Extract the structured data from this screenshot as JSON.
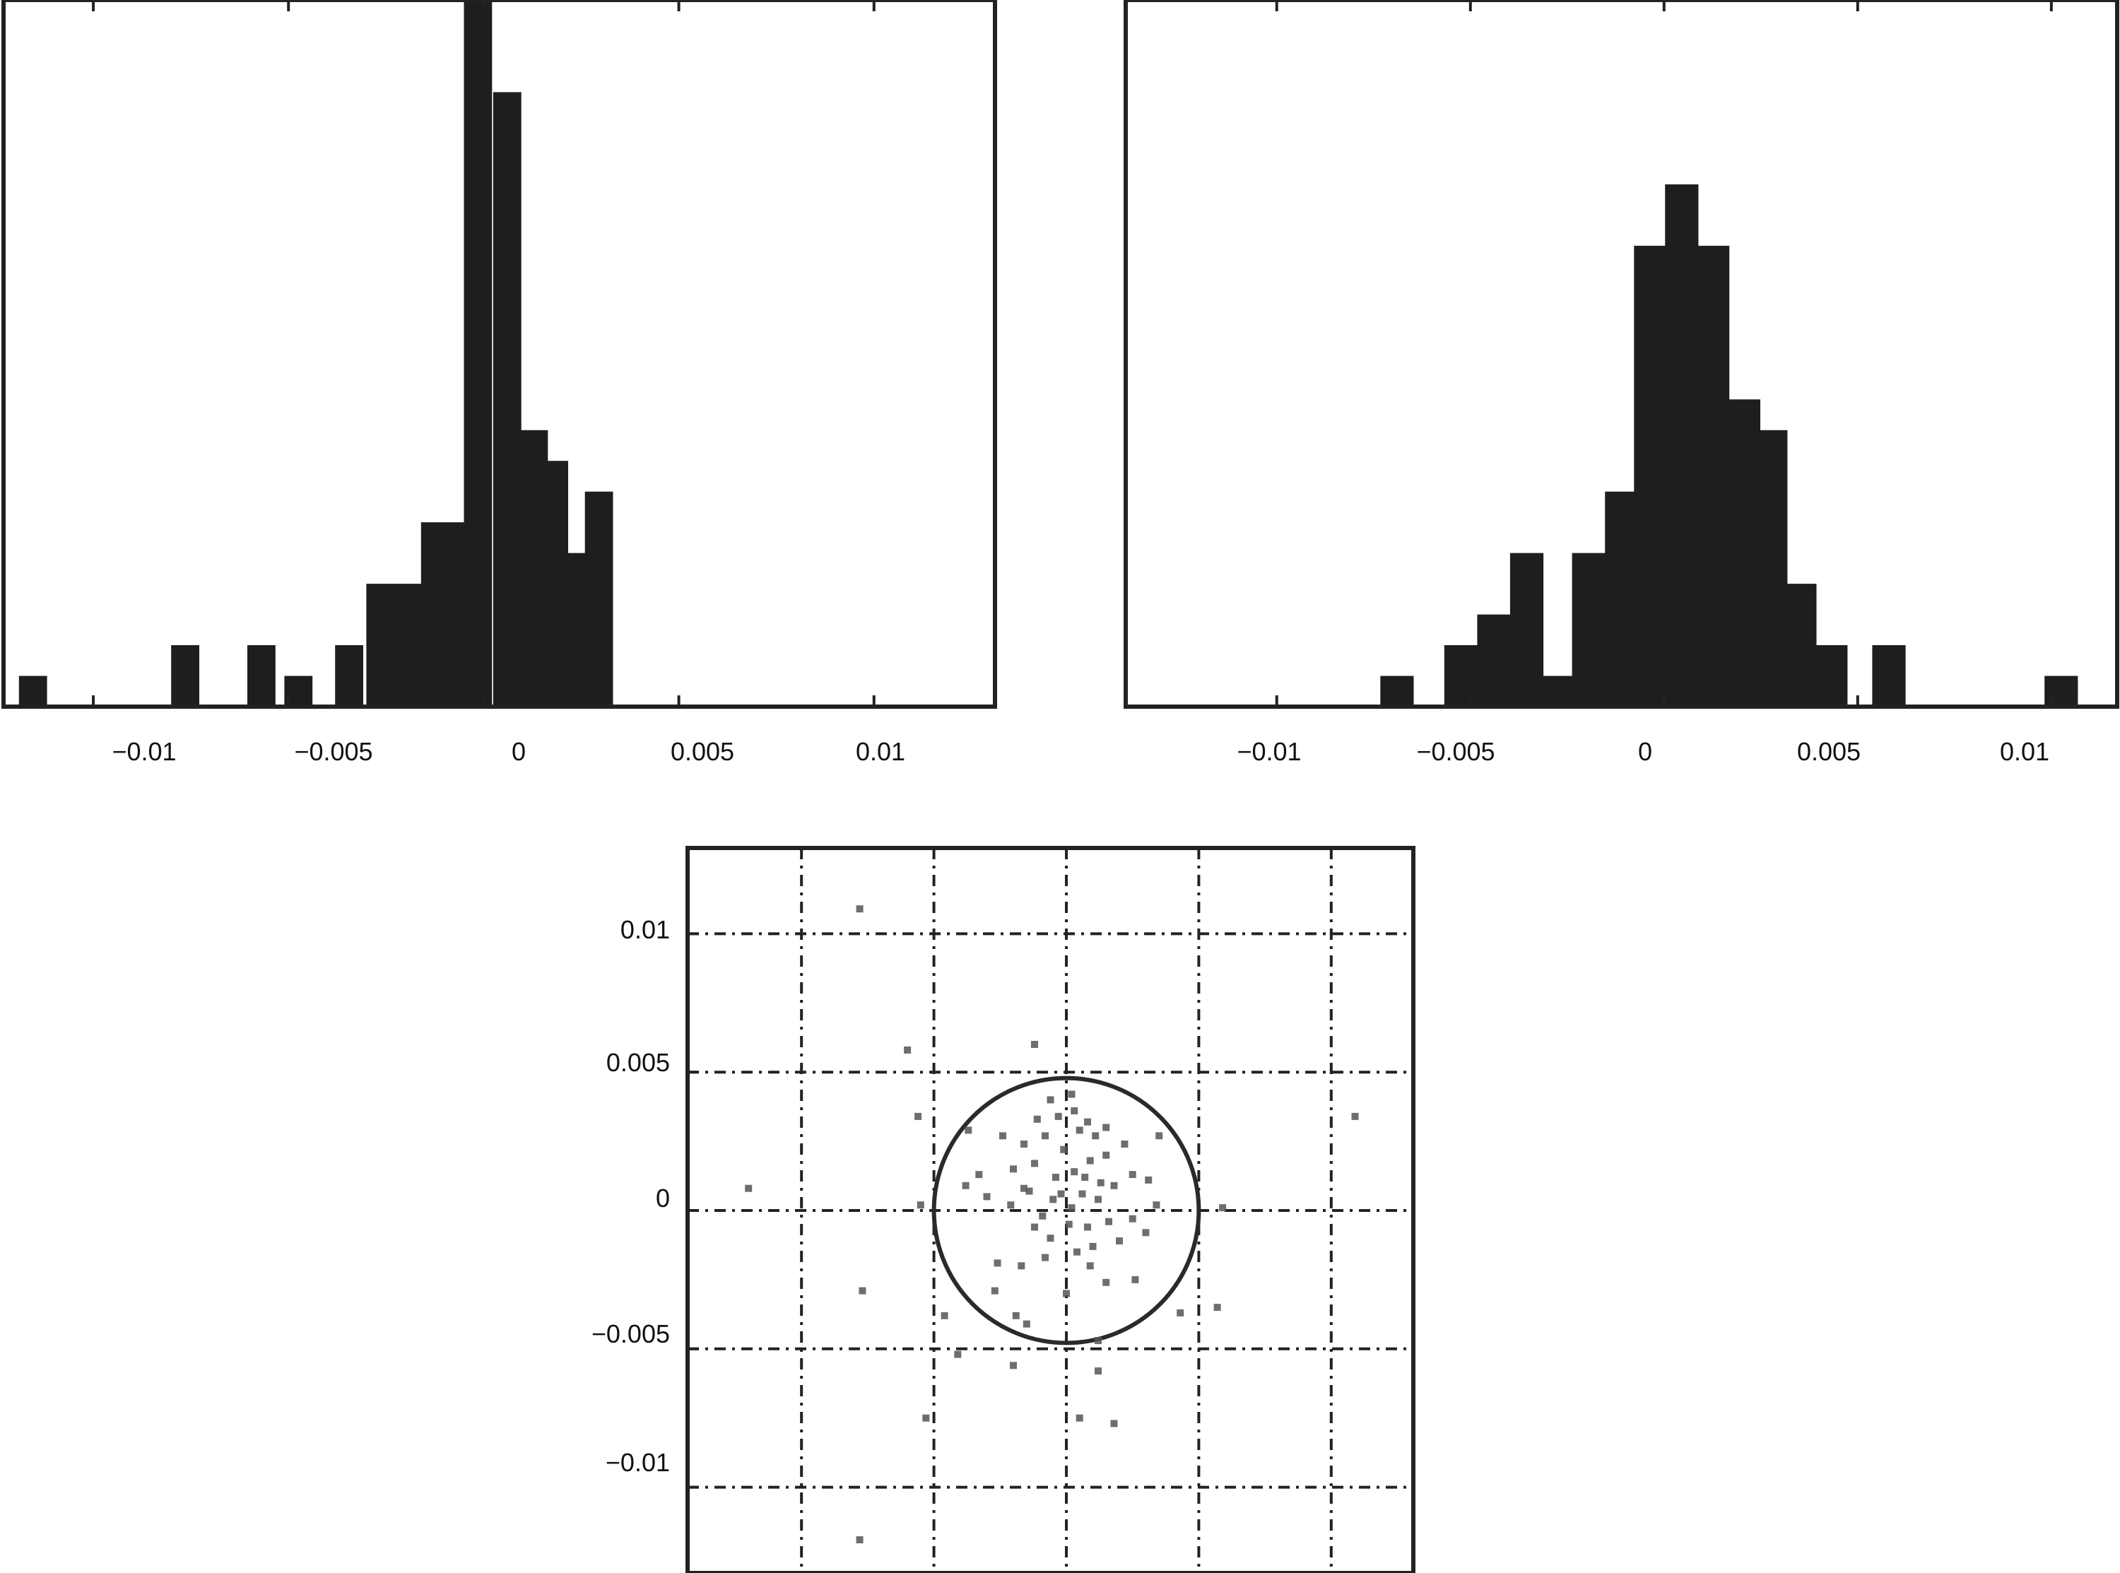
{
  "chart_data": [
    {
      "type": "bar",
      "chart": "histogram-left",
      "xlim": [
        -0.0123,
        0.0131
      ],
      "xticks": [
        -0.01,
        -0.005,
        0,
        0.005,
        0.01
      ],
      "xtick_labels": [
        "−0.01",
        "−0.005",
        "0",
        "0.005",
        "0.01"
      ],
      "ylim": [
        0,
        46
      ],
      "bin_width": 0.00071,
      "bins": [
        {
          "x": -0.01155,
          "value": 2
        },
        {
          "x": -0.00765,
          "value": 4
        },
        {
          "x": -0.0057,
          "value": 4
        },
        {
          "x": -0.00475,
          "value": 2
        },
        {
          "x": -0.00345,
          "value": 4
        },
        {
          "x": -0.00265,
          "value": 8
        },
        {
          "x": -0.00195,
          "value": 8
        },
        {
          "x": -0.00125,
          "value": 12
        },
        {
          "x": -0.00055,
          "value": 12
        },
        {
          "x": -0.00015,
          "value": 46
        },
        {
          "x": 0.0006,
          "value": 40
        },
        {
          "x": 0.00128,
          "value": 18
        },
        {
          "x": 0.0018,
          "value": 16
        },
        {
          "x": 0.0023,
          "value": 10
        },
        {
          "x": 0.00295,
          "value": 14
        }
      ]
    },
    {
      "type": "bar",
      "chart": "histogram-right",
      "xlim": [
        -0.0139,
        0.0117
      ],
      "xticks": [
        -0.01,
        -0.005,
        0,
        0.005,
        0.01
      ],
      "xtick_labels": [
        "−0.01",
        "−0.005",
        "0",
        "0.005",
        "0.01"
      ],
      "ylim": [
        0,
        46
      ],
      "bin_width": 0.00085,
      "bins": [
        {
          "x": -0.0069,
          "value": 2
        },
        {
          "x": -0.00525,
          "value": 4
        },
        {
          "x": -0.0044,
          "value": 6
        },
        {
          "x": -0.00355,
          "value": 10
        },
        {
          "x": -0.00275,
          "value": 2
        },
        {
          "x": -0.00195,
          "value": 10
        },
        {
          "x": -0.0011,
          "value": 14
        },
        {
          "x": -0.00035,
          "value": 30
        },
        {
          "x": 0.00045,
          "value": 34
        },
        {
          "x": 0.00125,
          "value": 30
        },
        {
          "x": 0.00205,
          "value": 20
        },
        {
          "x": 0.00275,
          "value": 18
        },
        {
          "x": 0.0035,
          "value": 8
        },
        {
          "x": 0.0043,
          "value": 4
        },
        {
          "x": 0.0058,
          "value": 4
        },
        {
          "x": 0.01025,
          "value": 2
        }
      ]
    },
    {
      "type": "scatter",
      "chart": "scatter-bottom",
      "xlim": [
        -0.0143,
        0.0131
      ],
      "ylim": [
        -0.0131,
        0.0131
      ],
      "grid": true,
      "grid_style": "dash-dot",
      "grid_x": [
        -0.01,
        -0.005,
        0,
        0.005,
        0.01
      ],
      "yticks": [
        -0.01,
        -0.005,
        0,
        0.005,
        0.01
      ],
      "ytick_labels": [
        "−0.01",
        "−0.005",
        "0",
        "0.005",
        "0.01"
      ],
      "circle": {
        "center": [
          0,
          0
        ],
        "radius": 0.005
      },
      "points": [
        [
          -0.0078,
          0.0109
        ],
        [
          -0.006,
          0.0058
        ],
        [
          -0.0012,
          0.006
        ],
        [
          0.0109,
          0.0034
        ],
        [
          -0.012,
          0.0008
        ],
        [
          -0.0077,
          -0.0029
        ],
        [
          -0.0078,
          -0.0119
        ],
        [
          -0.0053,
          -0.0075
        ],
        [
          0.0018,
          -0.0077
        ],
        [
          0.0005,
          -0.0075
        ],
        [
          0.0012,
          -0.0058
        ],
        [
          -0.002,
          -0.0056
        ],
        [
          -0.0041,
          -0.0052
        ],
        [
          -0.0046,
          -0.0038
        ],
        [
          0.0057,
          -0.0035
        ],
        [
          0.0043,
          -0.0037
        ],
        [
          0.0059,
          0.0001
        ],
        [
          -0.0055,
          0.0002
        ],
        [
          -0.0037,
          0.0029
        ],
        [
          -0.0056,
          0.0034
        ],
        [
          -0.0015,
          -0.0041
        ],
        [
          0.0,
          -0.003
        ],
        [
          0.0015,
          -0.0026
        ],
        [
          0.0026,
          -0.0025
        ],
        [
          -0.0026,
          -0.0019
        ],
        [
          -0.0017,
          -0.002
        ],
        [
          -0.0008,
          -0.0017
        ],
        [
          0.0004,
          -0.0015
        ],
        [
          0.001,
          -0.0013
        ],
        [
          0.002,
          -0.0011
        ],
        [
          0.003,
          -0.0008
        ],
        [
          -0.0006,
          -0.001
        ],
        [
          0.0008,
          -0.0006
        ],
        [
          -0.0012,
          -0.0006
        ],
        [
          0.0016,
          -0.0004
        ],
        [
          0.0025,
          -0.0003
        ],
        [
          0.0034,
          0.0002
        ],
        [
          -0.0021,
          0.0002
        ],
        [
          -0.003,
          0.0005
        ],
        [
          -0.0038,
          0.0009
        ],
        [
          -0.0014,
          0.0007
        ],
        [
          -0.0005,
          0.0004
        ],
        [
          0.0002,
          0.0001
        ],
        [
          0.0006,
          0.0006
        ],
        [
          0.0012,
          0.0004
        ],
        [
          0.0018,
          0.0009
        ],
        [
          0.0025,
          0.0013
        ],
        [
          0.0031,
          0.0011
        ],
        [
          -0.002,
          0.0015
        ],
        [
          -0.0012,
          0.0017
        ],
        [
          -0.0004,
          0.0012
        ],
        [
          0.0003,
          0.0014
        ],
        [
          0.0009,
          0.0018
        ],
        [
          0.0015,
          0.002
        ],
        [
          0.0022,
          0.0024
        ],
        [
          -0.0016,
          0.0024
        ],
        [
          -0.0008,
          0.0027
        ],
        [
          -0.0001,
          0.0022
        ],
        [
          0.0005,
          0.0029
        ],
        [
          0.0011,
          0.0027
        ],
        [
          -0.0024,
          0.0027
        ],
        [
          -0.0011,
          0.0033
        ],
        [
          -0.0003,
          0.0034
        ],
        [
          0.0003,
          0.0036
        ],
        [
          0.0008,
          0.0032
        ],
        [
          0.0015,
          0.003
        ],
        [
          -0.0006,
          0.004
        ],
        [
          0.0002,
          0.0042
        ],
        [
          -0.0016,
          0.0008
        ],
        [
          -0.0009,
          -0.0002
        ],
        [
          0.0001,
          -0.0005
        ],
        [
          0.0013,
          0.001
        ],
        [
          -0.0002,
          0.0006
        ],
        [
          0.0007,
          0.0012
        ],
        [
          -0.0033,
          0.0013
        ],
        [
          0.0035,
          0.0027
        ],
        [
          -0.0027,
          -0.0029
        ],
        [
          0.0009,
          -0.002
        ],
        [
          -0.0019,
          -0.0038
        ],
        [
          0.0012,
          -0.0047
        ]
      ]
    }
  ]
}
